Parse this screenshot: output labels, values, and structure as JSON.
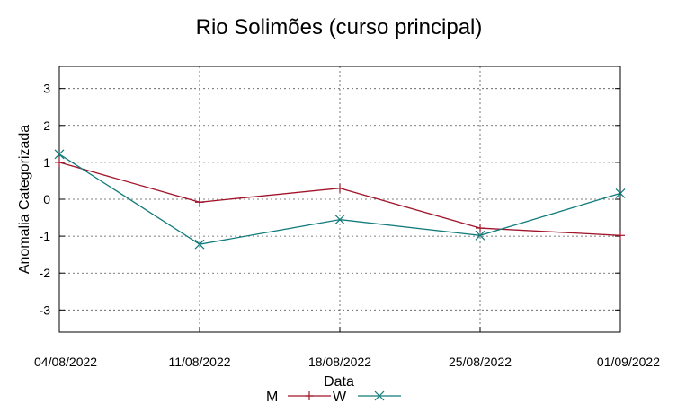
{
  "chart_data": {
    "type": "line",
    "title": "Rio Solimões (curso principal)",
    "xlabel": "Data",
    "ylabel": "Anomalia Categorizada",
    "categories": [
      "04/08/2022",
      "11/08/2022",
      "18/08/2022",
      "25/08/2022",
      "01/09/2022"
    ],
    "y_ticks": [
      "3",
      "2",
      "1",
      "0",
      "-1",
      "-2",
      "-3"
    ],
    "ylim": [
      -3.6,
      3.6
    ],
    "grid": true,
    "legend_position": "bottom-center",
    "series": [
      {
        "name": "M",
        "values": [
          1.0,
          -0.08,
          0.3,
          -0.78,
          -0.98
        ],
        "color": "#a0142a",
        "marker": "plus"
      },
      {
        "name": "W",
        "values": [
          1.22,
          -1.22,
          -0.55,
          -0.98,
          0.16
        ],
        "color": "#127b7b",
        "marker": "cross"
      }
    ]
  }
}
